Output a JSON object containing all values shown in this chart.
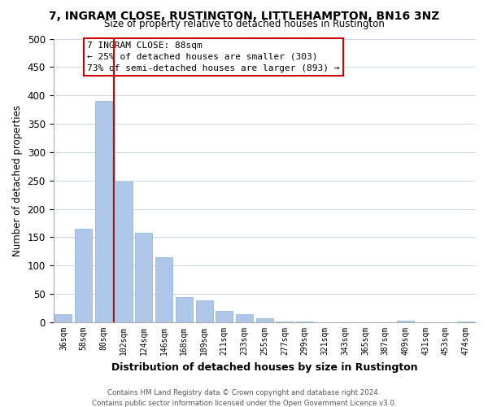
{
  "title": "7, INGRAM CLOSE, RUSTINGTON, LITTLEHAMPTON, BN16 3NZ",
  "subtitle": "Size of property relative to detached houses in Rustington",
  "xlabel": "Distribution of detached houses by size in Rustington",
  "ylabel": "Number of detached properties",
  "bar_color": "#aec6e8",
  "vline_color": "#cc0000",
  "annotation_title": "7 INGRAM CLOSE: 88sqm",
  "annotation_line1": "← 25% of detached houses are smaller (303)",
  "annotation_line2": "73% of semi-detached houses are larger (893) →",
  "categories": [
    "36sqm",
    "58sqm",
    "80sqm",
    "102sqm",
    "124sqm",
    "146sqm",
    "168sqm",
    "189sqm",
    "211sqm",
    "233sqm",
    "255sqm",
    "277sqm",
    "299sqm",
    "321sqm",
    "343sqm",
    "365sqm",
    "387sqm",
    "409sqm",
    "431sqm",
    "453sqm",
    "474sqm"
  ],
  "values": [
    14,
    165,
    390,
    248,
    158,
    115,
    44,
    39,
    20,
    15,
    7,
    1,
    1,
    0,
    0,
    0,
    0,
    3,
    0,
    0,
    1
  ],
  "ylim": [
    0,
    500
  ],
  "yticks": [
    0,
    50,
    100,
    150,
    200,
    250,
    300,
    350,
    400,
    450,
    500
  ],
  "footer1": "Contains HM Land Registry data © Crown copyright and database right 2024.",
  "footer2": "Contains public sector information licensed under the Open Government Licence v3.0."
}
